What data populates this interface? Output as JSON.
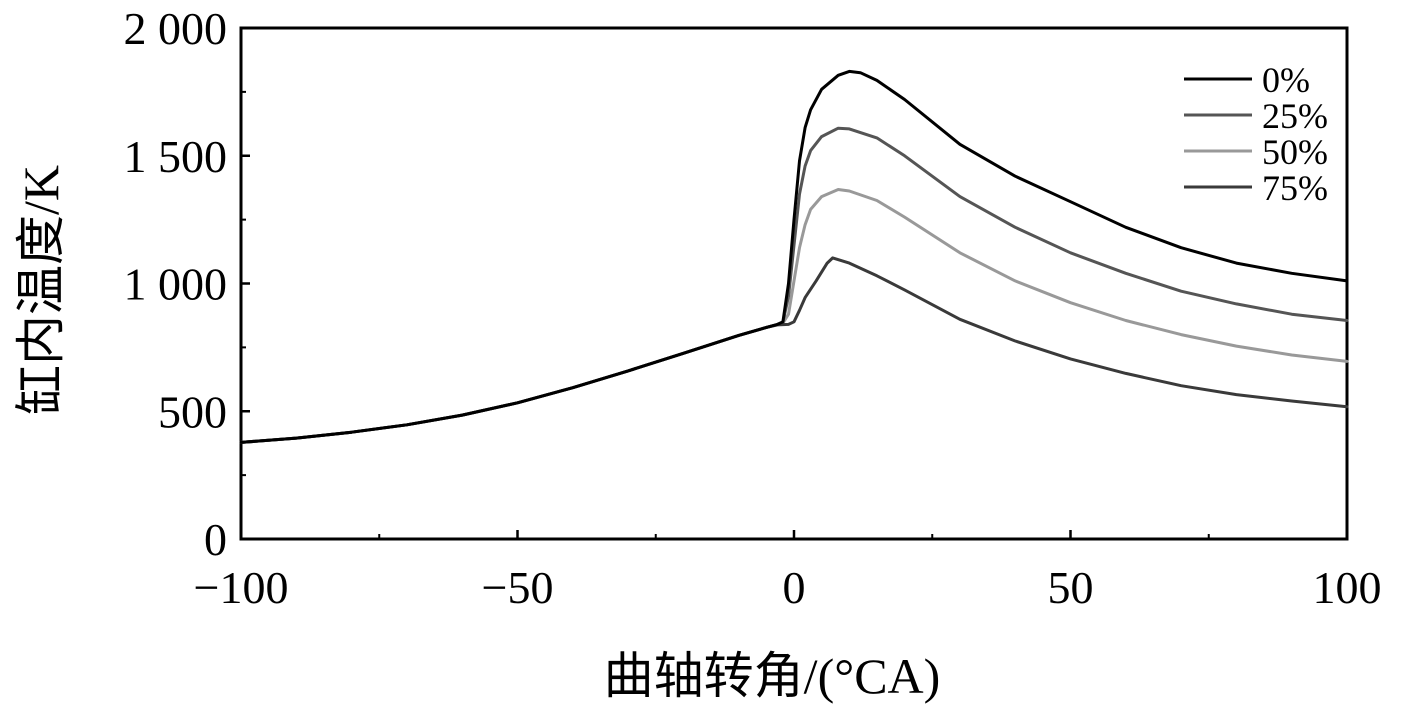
{
  "chart_data": {
    "type": "line",
    "title": "",
    "xlabel": "曲轴转角/(°CA)",
    "ylabel": "缸内温度/K",
    "xlim": [
      -100,
      100
    ],
    "ylim": [
      0,
      2000
    ],
    "x_ticks": [
      -100,
      -50,
      0,
      50,
      100
    ],
    "x_tick_labels": [
      "−100",
      "−50",
      "0",
      "50",
      "100"
    ],
    "y_ticks": [
      0,
      500,
      1000,
      1500,
      2000
    ],
    "y_tick_labels": [
      "0",
      "500",
      "1 000",
      "1 500",
      "2 000"
    ],
    "grid": false,
    "legend_position": "top-right",
    "series": [
      {
        "name": "0%",
        "color": "#000000",
        "points": [
          [
            -100,
            378
          ],
          [
            -90,
            395
          ],
          [
            -80,
            418
          ],
          [
            -70,
            447
          ],
          [
            -60,
            485
          ],
          [
            -50,
            533
          ],
          [
            -40,
            592
          ],
          [
            -30,
            658
          ],
          [
            -20,
            727
          ],
          [
            -10,
            797
          ],
          [
            -5,
            828
          ],
          [
            -3,
            840
          ],
          [
            -2,
            850
          ],
          [
            -1,
            1000
          ],
          [
            0,
            1250
          ],
          [
            1,
            1480
          ],
          [
            2,
            1610
          ],
          [
            3,
            1680
          ],
          [
            5,
            1760
          ],
          [
            8,
            1815
          ],
          [
            10,
            1830
          ],
          [
            12,
            1825
          ],
          [
            15,
            1795
          ],
          [
            20,
            1720
          ],
          [
            30,
            1545
          ],
          [
            40,
            1420
          ],
          [
            50,
            1320
          ],
          [
            60,
            1220
          ],
          [
            70,
            1140
          ],
          [
            80,
            1080
          ],
          [
            90,
            1040
          ],
          [
            100,
            1010
          ]
        ]
      },
      {
        "name": "25%",
        "color": "#555555",
        "points": [
          [
            -100,
            378
          ],
          [
            -90,
            395
          ],
          [
            -80,
            418
          ],
          [
            -70,
            447
          ],
          [
            -60,
            485
          ],
          [
            -50,
            533
          ],
          [
            -40,
            592
          ],
          [
            -30,
            658
          ],
          [
            -20,
            727
          ],
          [
            -10,
            797
          ],
          [
            -5,
            828
          ],
          [
            -3,
            840
          ],
          [
            -2,
            848
          ],
          [
            -1,
            950
          ],
          [
            0,
            1150
          ],
          [
            1,
            1350
          ],
          [
            2,
            1460
          ],
          [
            3,
            1520
          ],
          [
            5,
            1575
          ],
          [
            8,
            1608
          ],
          [
            10,
            1605
          ],
          [
            15,
            1570
          ],
          [
            20,
            1500
          ],
          [
            30,
            1340
          ],
          [
            40,
            1220
          ],
          [
            50,
            1120
          ],
          [
            60,
            1040
          ],
          [
            70,
            970
          ],
          [
            80,
            920
          ],
          [
            90,
            880
          ],
          [
            100,
            855
          ]
        ]
      },
      {
        "name": "50%",
        "color": "#999999",
        "points": [
          [
            -100,
            378
          ],
          [
            -90,
            395
          ],
          [
            -80,
            418
          ],
          [
            -70,
            447
          ],
          [
            -60,
            485
          ],
          [
            -50,
            533
          ],
          [
            -40,
            592
          ],
          [
            -30,
            658
          ],
          [
            -20,
            727
          ],
          [
            -10,
            797
          ],
          [
            -5,
            828
          ],
          [
            -3,
            840
          ],
          [
            -2,
            845
          ],
          [
            -1,
            880
          ],
          [
            0,
            1010
          ],
          [
            1,
            1140
          ],
          [
            2,
            1230
          ],
          [
            3,
            1290
          ],
          [
            5,
            1340
          ],
          [
            8,
            1368
          ],
          [
            10,
            1362
          ],
          [
            15,
            1325
          ],
          [
            20,
            1260
          ],
          [
            30,
            1120
          ],
          [
            40,
            1010
          ],
          [
            50,
            925
          ],
          [
            60,
            855
          ],
          [
            70,
            800
          ],
          [
            80,
            755
          ],
          [
            90,
            720
          ],
          [
            100,
            695
          ]
        ]
      },
      {
        "name": "75%",
        "color": "#3a3a3a",
        "points": [
          [
            -100,
            378
          ],
          [
            -90,
            395
          ],
          [
            -80,
            418
          ],
          [
            -70,
            447
          ],
          [
            -60,
            485
          ],
          [
            -50,
            533
          ],
          [
            -40,
            592
          ],
          [
            -30,
            658
          ],
          [
            -20,
            727
          ],
          [
            -10,
            797
          ],
          [
            -5,
            828
          ],
          [
            -3,
            838
          ],
          [
            -1,
            840
          ],
          [
            0,
            850
          ],
          [
            1,
            895
          ],
          [
            2,
            945
          ],
          [
            4,
            1010
          ],
          [
            6,
            1080
          ],
          [
            7,
            1100
          ],
          [
            10,
            1080
          ],
          [
            15,
            1030
          ],
          [
            20,
            975
          ],
          [
            30,
            860
          ],
          [
            40,
            775
          ],
          [
            50,
            705
          ],
          [
            60,
            648
          ],
          [
            70,
            600
          ],
          [
            80,
            565
          ],
          [
            90,
            540
          ],
          [
            100,
            518
          ]
        ]
      }
    ]
  }
}
